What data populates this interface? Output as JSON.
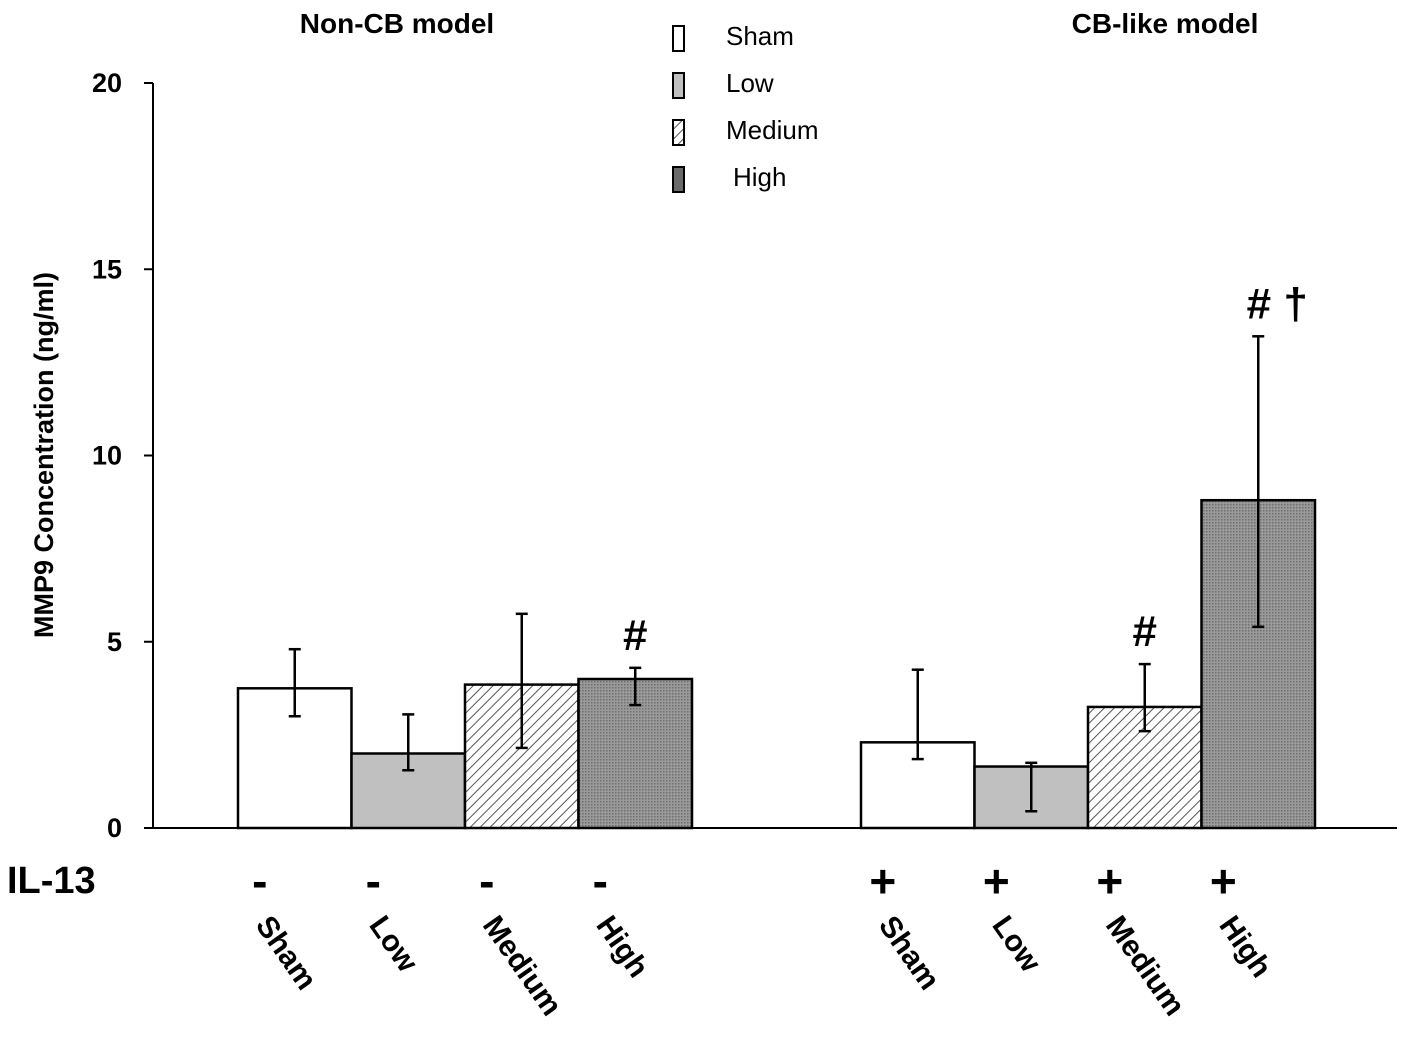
{
  "chart_data": {
    "type": "bar",
    "ylabel": "MMP9 Concentration (ng/ml)",
    "ylim": [
      0,
      20
    ],
    "yticks": [
      0,
      5,
      10,
      15,
      20
    ],
    "grid": false,
    "row_label": "IL-13",
    "legend": {
      "placement": "top-center",
      "entries": [
        {
          "name": "Sham",
          "fill": "white"
        },
        {
          "name": "Low",
          "fill": "lightgray"
        },
        {
          "name": "Medium",
          "fill": "hatched"
        },
        {
          "name": "High",
          "fill": "darkgray"
        }
      ]
    },
    "colors": {
      "sham": "#ffffff",
      "low": "#c0c0c0",
      "medium": "#ffffff",
      "high": "#8c8c8c",
      "stroke": "#000000"
    },
    "groups": [
      {
        "title": "Non-CB model",
        "bars": [
          {
            "category": "Sham",
            "il13": "-",
            "value": 3.75,
            "err_low": 3.0,
            "err_high": 4.8,
            "annotation": ""
          },
          {
            "category": "Low",
            "il13": "-",
            "value": 2.0,
            "err_low": 1.55,
            "err_high": 3.05,
            "annotation": ""
          },
          {
            "category": "Medium",
            "il13": "-",
            "value": 3.85,
            "err_low": 2.15,
            "err_high": 5.75,
            "annotation": ""
          },
          {
            "category": "High",
            "il13": "-",
            "value": 4.0,
            "err_low": 3.3,
            "err_high": 4.3,
            "annotation": "#"
          }
        ]
      },
      {
        "title": "CB-like model",
        "bars": [
          {
            "category": "Sham",
            "il13": "+",
            "value": 2.3,
            "err_low": 1.85,
            "err_high": 4.25,
            "annotation": ""
          },
          {
            "category": "Low",
            "il13": "+",
            "value": 1.65,
            "err_low": 0.45,
            "err_high": 1.75,
            "annotation": ""
          },
          {
            "category": "Medium",
            "il13": "+",
            "value": 3.25,
            "err_low": 2.6,
            "err_high": 4.4,
            "annotation": "#"
          },
          {
            "category": "High",
            "il13": "+",
            "value": 8.8,
            "err_low": 5.4,
            "err_high": 13.2,
            "annotation": "# †"
          }
        ]
      }
    ]
  }
}
